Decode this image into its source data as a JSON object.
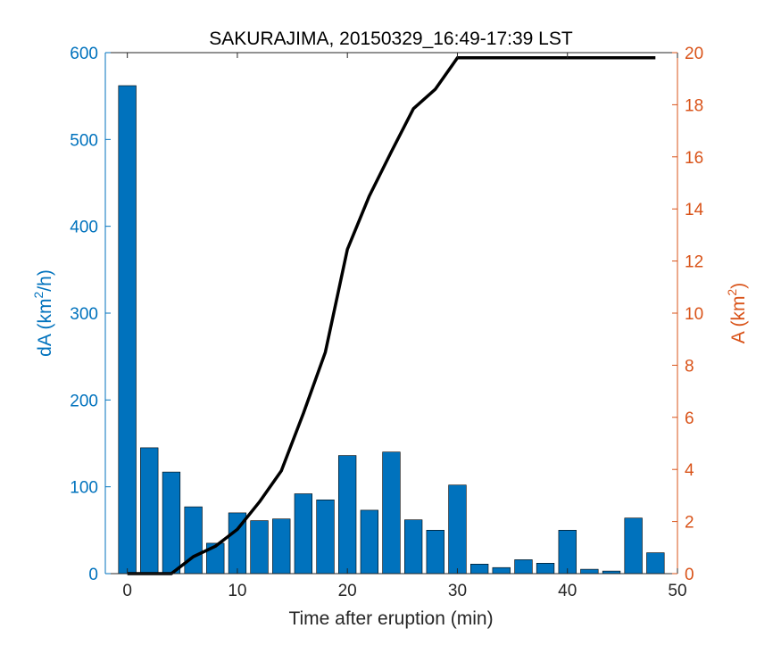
{
  "chart_data": {
    "type": "bar",
    "title": "SAKURAJIMA, 20150329_16:49-17:39 LST",
    "xlabel": "Time after eruption (min)",
    "ylabel_left": {
      "main": "dA (km",
      "sup": "2",
      "tail": "/h)"
    },
    "ylabel_right": {
      "main": "A (km",
      "sup": "2",
      "tail": ")"
    },
    "xlim": [
      -2,
      50
    ],
    "ylim_left": [
      0,
      600
    ],
    "ylim_right": [
      0,
      20
    ],
    "x_ticks": [
      "0",
      "10",
      "20",
      "30",
      "40",
      "50"
    ],
    "y_ticks_left": [
      "0",
      "100",
      "200",
      "300",
      "400",
      "500",
      "600"
    ],
    "y_ticks_right": [
      "0",
      "2",
      "4",
      "6",
      "8",
      "10",
      "12",
      "14",
      "16",
      "18",
      "20"
    ],
    "colors": {
      "bars": "#0072bd",
      "left_axis": "#0072bd",
      "right_axis": "#d95319",
      "line": "#000000"
    },
    "series": [
      {
        "type": "bar",
        "axis": "left",
        "x": [
          0,
          2,
          4,
          6,
          8,
          10,
          12,
          14,
          16,
          18,
          20,
          22,
          24,
          26,
          28,
          30,
          32,
          34,
          36,
          38,
          40,
          42,
          44,
          46,
          48
        ],
        "values": [
          562,
          145,
          117,
          77,
          35,
          70,
          61,
          63,
          92,
          85,
          136,
          73,
          140,
          62,
          50,
          102,
          11,
          7,
          16,
          12,
          50,
          5,
          3,
          64,
          24
        ]
      },
      {
        "type": "line",
        "axis": "right",
        "x": [
          0,
          2,
          4,
          6,
          8,
          10,
          12,
          14,
          16,
          18,
          20,
          22,
          24,
          26,
          28,
          30,
          32,
          34,
          36,
          38,
          40,
          42,
          44,
          46,
          48
        ],
        "values": [
          0,
          0,
          0,
          0.65,
          1.05,
          1.7,
          2.75,
          3.95,
          6.15,
          8.5,
          12.45,
          14.5,
          16.2,
          17.85,
          18.6,
          19.8,
          19.8,
          19.8,
          19.8,
          19.8,
          19.8,
          19.8,
          19.8,
          19.8,
          19.8
        ]
      }
    ]
  }
}
